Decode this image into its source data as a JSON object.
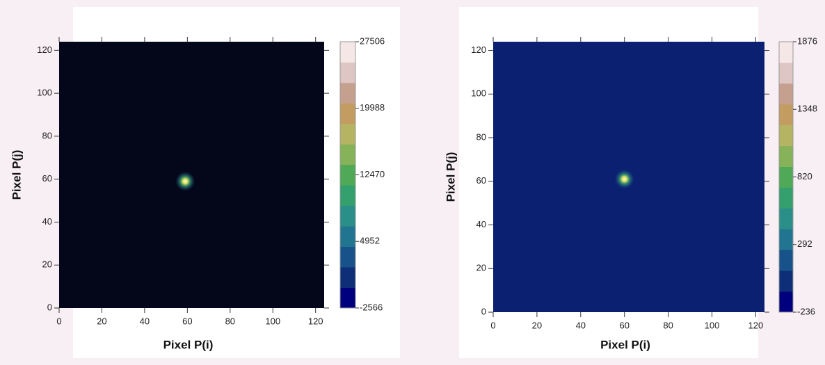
{
  "chart_data": [
    {
      "type": "heatmap",
      "xlabel": "Pixel P(i)",
      "ylabel": "Pixel P(j)",
      "xlim": [
        0,
        124
      ],
      "ylim": [
        0,
        124
      ],
      "xticks": [
        0,
        20,
        40,
        60,
        80,
        100,
        120
      ],
      "yticks": [
        0,
        20,
        40,
        60,
        80,
        100,
        120
      ],
      "background": "#04071a",
      "x": [
        59
      ],
      "y": [
        59
      ],
      "values": [
        27506
      ],
      "colorbar": {
        "clim": [
          -2566,
          27506
        ],
        "ticks": [
          -2566,
          4952,
          12470,
          19988,
          27506
        ],
        "colors": [
          "#00007e",
          "#0e2f78",
          "#17528a",
          "#227590",
          "#2a8f88",
          "#33a06e",
          "#4fa956",
          "#86b25a",
          "#b5b462",
          "#c39c62",
          "#c5a08f",
          "#ddc6c4",
          "#f5e7e6"
        ]
      }
    },
    {
      "type": "heatmap",
      "xlabel": "Pixel P(i)",
      "ylabel": "Pixel P(j)",
      "xlim": [
        0,
        124
      ],
      "ylim": [
        0,
        124
      ],
      "xticks": [
        0,
        20,
        40,
        60,
        80,
        100,
        120
      ],
      "yticks": [
        0,
        20,
        40,
        60,
        80,
        100,
        120
      ],
      "background": "#0b2070",
      "x": [
        60
      ],
      "y": [
        61
      ],
      "values": [
        1876
      ],
      "colorbar": {
        "clim": [
          -236,
          1876
        ],
        "ticks": [
          -236,
          292,
          820,
          1348,
          1876
        ],
        "colors": [
          "#00007e",
          "#0e2f78",
          "#17528a",
          "#227590",
          "#2a8f88",
          "#33a06e",
          "#4fa956",
          "#86b25a",
          "#b5b462",
          "#c39c62",
          "#c5a08f",
          "#ddc6c4",
          "#f5e7e6"
        ]
      }
    }
  ]
}
